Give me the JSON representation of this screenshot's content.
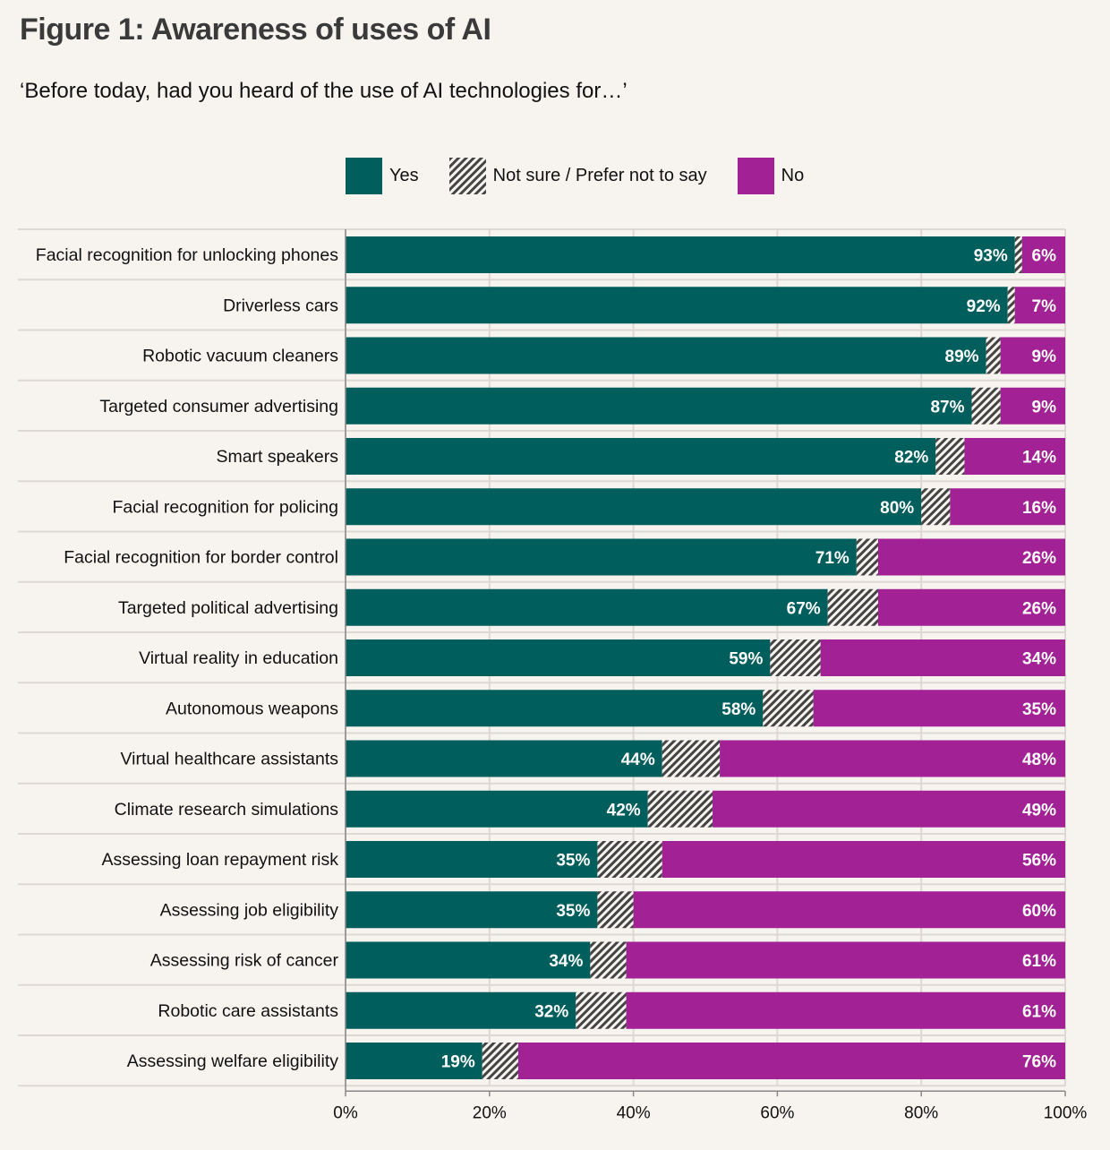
{
  "header": {
    "title": "Figure 1: Awareness of uses of AI",
    "subtitle": "‘Before today, had you heard of the use of AI technologies for…’"
  },
  "colors": {
    "yes": "#005e5d",
    "unsure_stripe": "#444444",
    "unsure_bg": "#f7f4ef",
    "no": "#a22195",
    "background": "#f7f4ef",
    "grid": "#ddd8d1"
  },
  "legend": [
    {
      "key": "yes",
      "label": "Yes"
    },
    {
      "key": "unsure",
      "label": "Not sure / Prefer not to say"
    },
    {
      "key": "no",
      "label": "No"
    }
  ],
  "chart_data": {
    "type": "bar",
    "orientation": "horizontal",
    "stacked": true,
    "title": "Figure 1: Awareness of uses of AI",
    "subtitle": "‘Before today, had you heard of the use of AI technologies for…’",
    "xlabel": "",
    "ylabel": "",
    "xlim": [
      0,
      100
    ],
    "x_ticks": [
      "0%",
      "20%",
      "40%",
      "60%",
      "80%",
      "100%"
    ],
    "grid": true,
    "legend_position": "top",
    "categories": [
      "Facial recognition for unlocking phones",
      "Driverless cars",
      "Robotic vacuum cleaners",
      "Targeted consumer advertising",
      "Smart speakers",
      "Facial recognition for policing",
      "Facial recognition for border control",
      "Targeted political advertising",
      "Virtual reality in education",
      "Autonomous weapons",
      "Virtual healthcare assistants",
      "Climate research simulations",
      "Assessing loan repayment risk",
      "Assessing job eligibility",
      "Assessing risk of cancer",
      "Robotic care assistants",
      "Assessing welfare eligibility"
    ],
    "series": [
      {
        "name": "Yes",
        "values": [
          93,
          92,
          89,
          87,
          82,
          80,
          71,
          67,
          59,
          58,
          44,
          42,
          35,
          35,
          34,
          32,
          19
        ]
      },
      {
        "name": "Not sure / Prefer not to say",
        "values": [
          1,
          1,
          2,
          4,
          4,
          4,
          3,
          7,
          7,
          7,
          8,
          9,
          9,
          5,
          5,
          7,
          5
        ]
      },
      {
        "name": "No",
        "values": [
          6,
          7,
          9,
          9,
          14,
          16,
          26,
          26,
          34,
          35,
          48,
          49,
          56,
          60,
          61,
          61,
          76
        ]
      }
    ],
    "data_labels": {
      "yes": [
        "93%",
        "92%",
        "89%",
        "87%",
        "82%",
        "80%",
        "71%",
        "67%",
        "59%",
        "58%",
        "44%",
        "42%",
        "35%",
        "35%",
        "34%",
        "32%",
        "19%"
      ],
      "no": [
        "6%",
        "7%",
        "9%",
        "9%",
        "14%",
        "16%",
        "26%",
        "26%",
        "34%",
        "35%",
        "48%",
        "49%",
        "56%",
        "60%",
        "61%",
        "61%",
        "76%"
      ]
    }
  }
}
